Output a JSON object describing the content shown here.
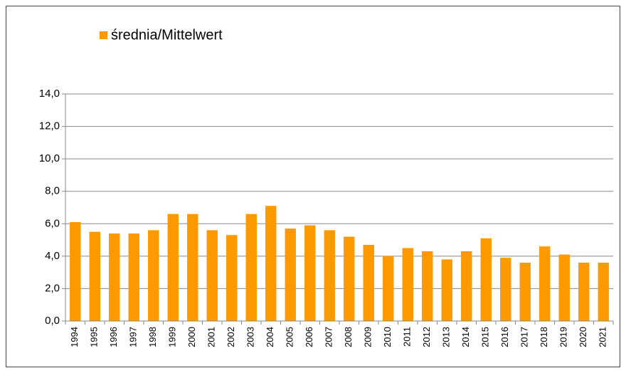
{
  "chart_data": {
    "type": "bar",
    "series": [
      {
        "name": "średnia/Mittelwert",
        "color": "#ff9900",
        "values": [
          6.1,
          5.5,
          5.4,
          5.4,
          5.6,
          6.6,
          6.6,
          5.6,
          5.3,
          6.6,
          7.1,
          5.7,
          5.9,
          5.6,
          5.2,
          4.7,
          4.0,
          4.5,
          4.3,
          3.8,
          4.3,
          5.1,
          3.9,
          3.6,
          4.6,
          4.1,
          3.6,
          3.6
        ]
      }
    ],
    "categories": [
      "1994",
      "1995",
      "1996",
      "1997",
      "1998",
      "1999",
      "2000",
      "2001",
      "2002",
      "2003",
      "2004",
      "2005",
      "2006",
      "2007",
      "2008",
      "2009",
      "2010",
      "2011",
      "2012",
      "2013",
      "2014",
      "2015",
      "2016",
      "2017",
      "2018",
      "2019",
      "2020",
      "2021"
    ],
    "ylim": [
      0,
      14
    ],
    "yticks": [
      {
        "value": 0,
        "label": "0,0"
      },
      {
        "value": 2,
        "label": "2,0"
      },
      {
        "value": 4,
        "label": "4,0"
      },
      {
        "value": 6,
        "label": "6,0"
      },
      {
        "value": 8,
        "label": "8,0"
      },
      {
        "value": 10,
        "label": "10,0"
      },
      {
        "value": 12,
        "label": "12,0"
      },
      {
        "value": 14,
        "label": "14,0"
      }
    ],
    "grid": true,
    "legend": "top-left"
  }
}
